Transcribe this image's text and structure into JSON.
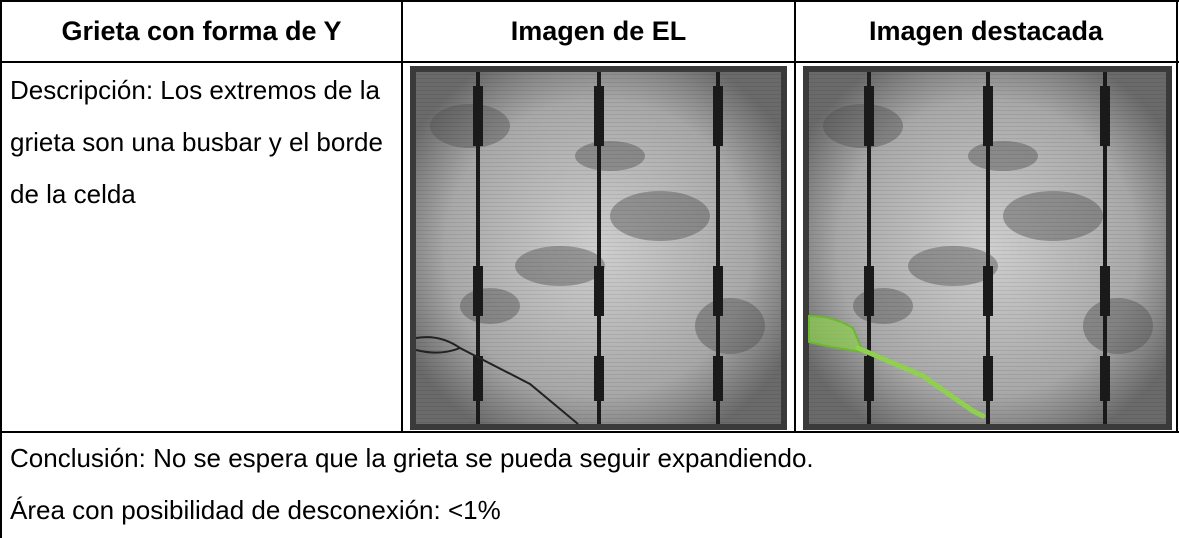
{
  "header": {
    "columns": [
      "Grieta con forma de Y",
      "Imagen de EL",
      "Imagen destacada"
    ]
  },
  "description": "Descripción: Los extremos de la grieta son una busbar y el borde de la celda",
  "conclusion": "Conclusión: No se espera que la grieta se pueda seguir expandiendo.",
  "area": "Área con posibilidad de desconexión: <1%"
}
